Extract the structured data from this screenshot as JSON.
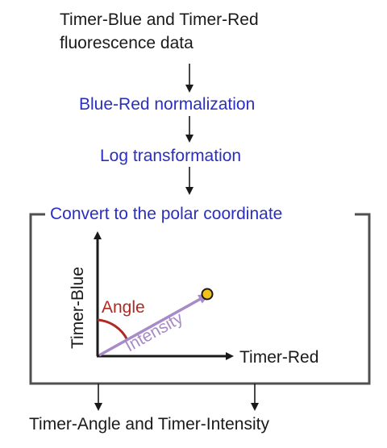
{
  "steps": {
    "input_line1": "Timer-Blue and Timer-Red",
    "input_line2": "fluorescence data",
    "normalization": "Blue-Red normalization",
    "log_transform": "Log transformation",
    "polar_convert": "Convert to the polar coordinate",
    "output": "Timer-Angle and Timer-Intensity"
  },
  "plot": {
    "y_axis_label": "Timer-Blue",
    "x_axis_label": "Timer-Red",
    "angle_label": "Angle",
    "intensity_label": "Intensity"
  },
  "colors": {
    "text": "#1a1a1a",
    "step_blue": "#2b2fbf",
    "angle_red": "#b02a22",
    "intensity_purple": "#a78ac8",
    "point_fill": "#f2c21b",
    "box_border": "#505050"
  }
}
